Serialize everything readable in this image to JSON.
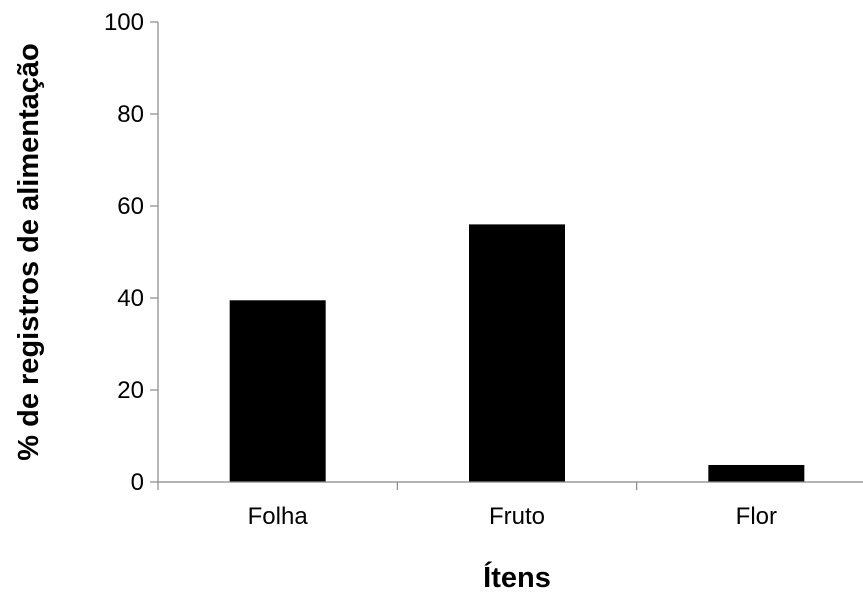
{
  "chart_data": {
    "type": "bar",
    "title": "",
    "xlabel": "Ítens",
    "ylabel": "% de registros de alimentação",
    "categories": [
      "Folha",
      "Fruto",
      "Flor"
    ],
    "values": [
      39.5,
      56,
      3.7
    ],
    "ylim": [
      0,
      100
    ],
    "yticks": [
      0,
      20,
      40,
      60,
      80,
      100
    ],
    "ytick_labels": [
      "0",
      "20",
      "40",
      "60",
      "80",
      "100"
    ],
    "grid": false,
    "legend": "none",
    "bar_color": "#000000"
  }
}
